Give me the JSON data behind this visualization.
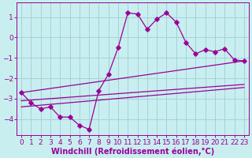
{
  "xlabel": "Windchill (Refroidissement éolien,°C)",
  "background_color": "#c8eef0",
  "grid_color": "#9dcfcf",
  "line_color": "#990099",
  "xlim": [
    -0.5,
    23.5
  ],
  "ylim": [
    -4.8,
    1.7
  ],
  "yticks": [
    1,
    0,
    -1,
    -2,
    -3,
    -4
  ],
  "xticks": [
    0,
    1,
    2,
    3,
    4,
    5,
    6,
    7,
    8,
    9,
    10,
    11,
    12,
    13,
    14,
    15,
    16,
    17,
    18,
    19,
    20,
    21,
    22,
    23
  ],
  "main_x": [
    0,
    1,
    2,
    3,
    4,
    5,
    6,
    7,
    8,
    9,
    10,
    11,
    12,
    13,
    14,
    15,
    16,
    17,
    18,
    19,
    20,
    21,
    22,
    23
  ],
  "main_y": [
    -2.7,
    -3.2,
    -3.5,
    -3.4,
    -3.9,
    -3.9,
    -4.3,
    -4.5,
    -2.6,
    -1.8,
    -0.5,
    1.2,
    1.15,
    0.4,
    0.9,
    1.2,
    0.75,
    -0.25,
    -0.8,
    -0.6,
    -0.7,
    -0.55,
    -1.1,
    -1.15
  ],
  "line1_x": [
    0,
    23
  ],
  "line1_y": [
    -2.7,
    -1.15
  ],
  "line2_x": [
    0,
    23
  ],
  "line2_y": [
    -3.4,
    -2.45
  ],
  "line3_x": [
    0,
    23
  ],
  "line3_y": [
    -3.1,
    -2.3
  ],
  "tick_fontsize": 6.5,
  "xlabel_fontsize": 7
}
